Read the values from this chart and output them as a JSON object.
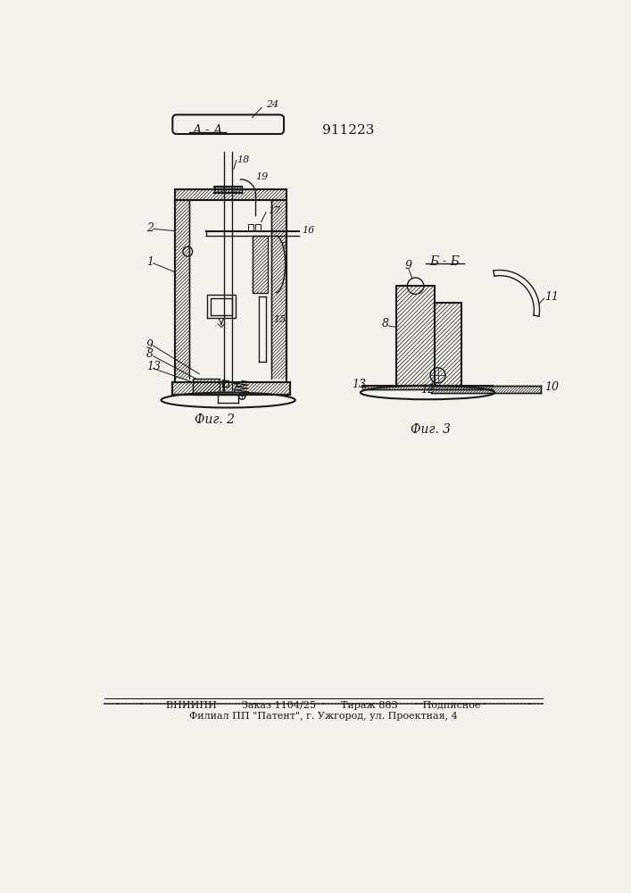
{
  "title_patent": "911223",
  "section_label_1": "А - А",
  "section_label_2": "Б - Б",
  "fig2_label": "Фиг. 2",
  "fig3_label": "Фиг. 3",
  "footer_line1": "ВНИИПИ        Заказ 1104/25        Тираж 883        Подписное",
  "footer_line2": "Филиал ПП \"Патент\", г. Ужгород, ул. Проектная, 4",
  "bg_color": "#f5f2ee",
  "line_color": "#1a1a1a"
}
